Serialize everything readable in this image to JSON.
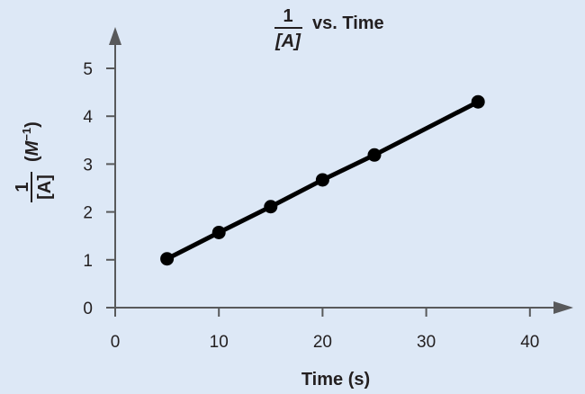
{
  "colors": {
    "background": "#dde8f6",
    "axis": "#58595b",
    "series": "#000000"
  },
  "chart_data": {
    "type": "line",
    "title": {
      "numerator": "1",
      "denominator": "[A]",
      "suffix": "vs. Time"
    },
    "xlabel": "Time (s)",
    "ylabel": {
      "numerator": "1",
      "denominator": "[A]",
      "units_open": "(",
      "units_symbol": "M",
      "units_exponent": "−1",
      "units_close": ")"
    },
    "xlim": [
      0,
      40
    ],
    "ylim": [
      0,
      5
    ],
    "x_ticks": [
      "0",
      "10",
      "20",
      "30",
      "40"
    ],
    "y_ticks": [
      "0",
      "1",
      "2",
      "3",
      "4",
      "5"
    ],
    "grid": false,
    "series": [
      {
        "x": [
          5,
          10,
          15,
          20,
          25,
          35
        ],
        "y": [
          1.02,
          1.57,
          2.11,
          2.67,
          3.19,
          4.3
        ]
      }
    ]
  }
}
